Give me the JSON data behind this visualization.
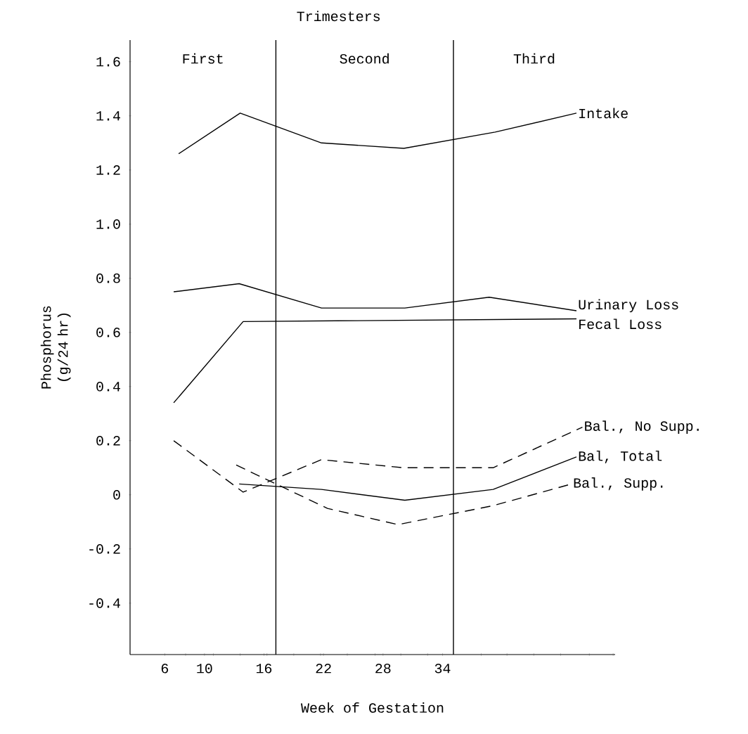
{
  "chart_data": {
    "type": "line",
    "title": "Trimesters",
    "xlabel": "Week of Gestation",
    "ylabel": "Phosphorus (g/24 hr)",
    "xlim": [
      2.5,
      51.4
    ],
    "ylim": [
      -0.59,
      1.68
    ],
    "xticks": [
      6,
      {
        "value": 8.1,
        "label": null
      },
      10,
      {
        "value": 10.9,
        "label": null
      },
      {
        "value": 13.6,
        "label": null
      },
      16,
      {
        "value": 16.3,
        "label": null
      },
      {
        "value": 19.0,
        "label": null
      },
      {
        "value": 21.7,
        "label": null
      },
      22,
      {
        "value": 24.4,
        "label": null
      },
      {
        "value": 27.2,
        "label": null
      },
      28,
      {
        "value": 29.8,
        "label": null
      },
      {
        "value": 32.5,
        "label": null
      },
      34,
      {
        "value": 37.9,
        "label": null
      },
      {
        "value": 40.5,
        "label": null
      },
      {
        "value": 43.2,
        "label": null
      },
      {
        "value": 45.9,
        "label": null
      },
      {
        "value": 48.8,
        "label": null
      },
      {
        "value": 51.2,
        "label": null
      }
    ],
    "yticks": [
      -0.4,
      -0.2,
      0,
      {
        "value": 0.2,
        "label": "0.2"
      },
      {
        "value": 0.4,
        "label": "0.4"
      },
      {
        "value": 0.6,
        "label": "0.6"
      },
      {
        "value": 0.8,
        "label": "0.8"
      },
      {
        "value": 1.0,
        "label": "1.0"
      },
      {
        "value": 1.2,
        "label": "1.2"
      },
      {
        "value": 1.4,
        "label": "1.4"
      },
      {
        "value": 1.6,
        "label": "1.6"
      }
    ],
    "grid": false,
    "legend": false,
    "marker": "none",
    "series": [
      {
        "name": "Intake",
        "color": "#000000",
        "line_style": "solid",
        "x": [
          7.4,
          13.6,
          21.8,
          30.1,
          39.3,
          47.5
        ],
        "values": [
          1.26,
          1.41,
          1.3,
          1.28,
          1.34,
          1.41
        ]
      },
      {
        "name": "Urinary Loss",
        "color": "#000000",
        "line_style": "solid",
        "x": [
          6.9,
          13.5,
          21.8,
          30.2,
          38.7,
          47.5
        ],
        "values": [
          0.75,
          0.78,
          0.69,
          0.69,
          0.73,
          0.68
        ]
      },
      {
        "name": "Fecal Loss",
        "color": "#000000",
        "line_style": "solid",
        "x": [
          6.9,
          13.9,
          47.5
        ],
        "values": [
          0.34,
          0.64,
          0.65
        ]
      },
      {
        "name": "Bal., No Supp.",
        "color": "#000000",
        "line_style": "dashed",
        "x": [
          6.9,
          13.9,
          21.8,
          30.1,
          39.1,
          48.1
        ],
        "values": [
          0.2,
          0.01,
          0.13,
          0.1,
          0.1,
          0.25
        ]
      },
      {
        "name": "Bal, Total",
        "color": "#000000",
        "line_style": "solid",
        "x": [
          13.5,
          21.8,
          30.2,
          39.1,
          47.5
        ],
        "values": [
          0.04,
          0.02,
          -0.02,
          0.02,
          0.14
        ]
      },
      {
        "name": "Bal., Supp.",
        "color": "#000000",
        "line_style": "dashed",
        "x": [
          13.2,
          22.4,
          29.5,
          39.1,
          47.0
        ],
        "values": [
          0.11,
          -0.05,
          -0.11,
          -0.04,
          0.04
        ]
      }
    ],
    "ref_lines": [
      {
        "axis": "x",
        "value": 17.2
      },
      {
        "axis": "x",
        "value": 35.1
      }
    ],
    "annotations": [
      "First",
      "Second",
      "Third"
    ]
  }
}
